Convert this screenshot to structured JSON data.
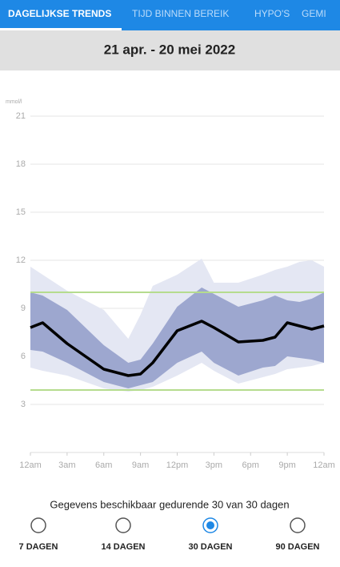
{
  "tabs": [
    "DAGELIJKSE TRENDS",
    "TIJD BINNEN BEREIK",
    "HYPO'S",
    "GEMI"
  ],
  "header": {
    "date_range": "21 apr. - 20 mei 2022"
  },
  "chart_data": {
    "type": "line",
    "y_unit": "mmol/l",
    "x": [
      0,
      1,
      3,
      6,
      8,
      9,
      10,
      12,
      14,
      15,
      17,
      19,
      20,
      21,
      22,
      23,
      24
    ],
    "series": [
      {
        "color": "#000000",
        "values": [
          7.8,
          8.1,
          6.8,
          5.2,
          4.8,
          4.9,
          5.6,
          7.6,
          8.2,
          7.8,
          6.9,
          7.0,
          7.2,
          8.1,
          7.9,
          7.7,
          7.9
        ]
      }
    ],
    "bands": [
      {
        "color": "#e4e7f3",
        "high": [
          11.6,
          11.1,
          10.1,
          8.9,
          7.1,
          8.6,
          10.4,
          11.1,
          12.1,
          10.6,
          10.6,
          11.1,
          11.4,
          11.6,
          11.9,
          12.0,
          11.6
        ],
        "low": [
          5.3,
          5.1,
          4.8,
          4.0,
          3.8,
          3.9,
          4.1,
          4.8,
          5.6,
          5.1,
          4.3,
          4.7,
          4.9,
          5.2,
          5.3,
          5.4,
          5.6
        ]
      },
      {
        "color": "#9da7cf",
        "high": [
          10.0,
          9.8,
          8.9,
          6.7,
          5.6,
          5.8,
          6.8,
          9.1,
          10.3,
          9.9,
          9.1,
          9.5,
          9.8,
          9.5,
          9.4,
          9.6,
          10.0
        ],
        "low": [
          6.4,
          6.3,
          5.6,
          4.4,
          4.0,
          4.2,
          4.4,
          5.6,
          6.3,
          5.6,
          4.8,
          5.3,
          5.4,
          6.0,
          5.9,
          5.8,
          5.6
        ]
      }
    ],
    "target_lines": [
      3.9,
      10.0
    ],
    "target_color": "#b5dc8e",
    "xlim": [
      0,
      24
    ],
    "ylim": [
      0,
      22
    ],
    "xticks": [
      {
        "value": 0,
        "label": "12am"
      },
      {
        "value": 3,
        "label": "3am"
      },
      {
        "value": 6,
        "label": "6am"
      },
      {
        "value": 9,
        "label": "9am"
      },
      {
        "value": 12,
        "label": "12pm"
      },
      {
        "value": 15,
        "label": "3pm"
      },
      {
        "value": 18,
        "label": "6pm"
      },
      {
        "value": 21,
        "label": "9pm"
      },
      {
        "value": 24,
        "label": "12am"
      }
    ],
    "yticks": [
      3,
      6,
      9,
      12,
      15,
      18,
      21
    ],
    "grid": true
  },
  "footer": {
    "note": "Gegevens beschikbaar gedurende 30 van 30 dagen",
    "options": [
      "7 DAGEN",
      "14 DAGEN",
      "30 DAGEN",
      "90 DAGEN"
    ],
    "selected": 2
  }
}
